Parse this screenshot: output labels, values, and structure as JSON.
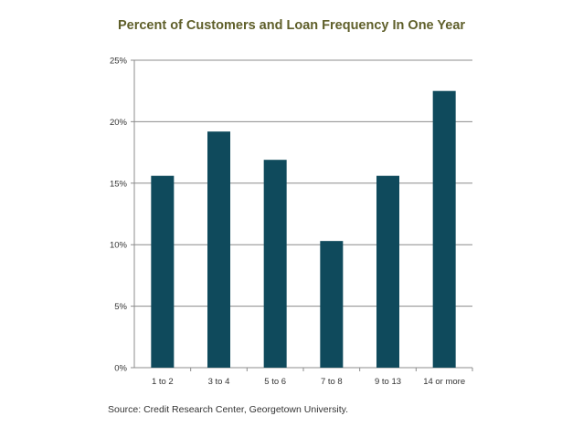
{
  "chart_data": {
    "type": "bar",
    "title": "Percent of Customers and Loan Frequency In One Year",
    "categories": [
      "1 to 2",
      "3 to 4",
      "5 to 6",
      "7 to 8",
      "9 to 13",
      "14 or more"
    ],
    "values": [
      15.6,
      19.2,
      16.9,
      10.3,
      15.6,
      22.5
    ],
    "y_unit": "%",
    "ylim": [
      0,
      25
    ],
    "y_ticks": [
      0,
      5,
      10,
      15,
      20,
      25
    ],
    "y_tick_labels": [
      "0%",
      "5%",
      "10%",
      "15%",
      "20%",
      "25%"
    ],
    "xlabel": "",
    "ylabel": "",
    "grid": true,
    "legend": "none",
    "bar_color": "#0f4a5c",
    "grid_color": "#8c8c8c"
  },
  "footer": {
    "source": "Source: Credit Research Center, Georgetown University."
  }
}
